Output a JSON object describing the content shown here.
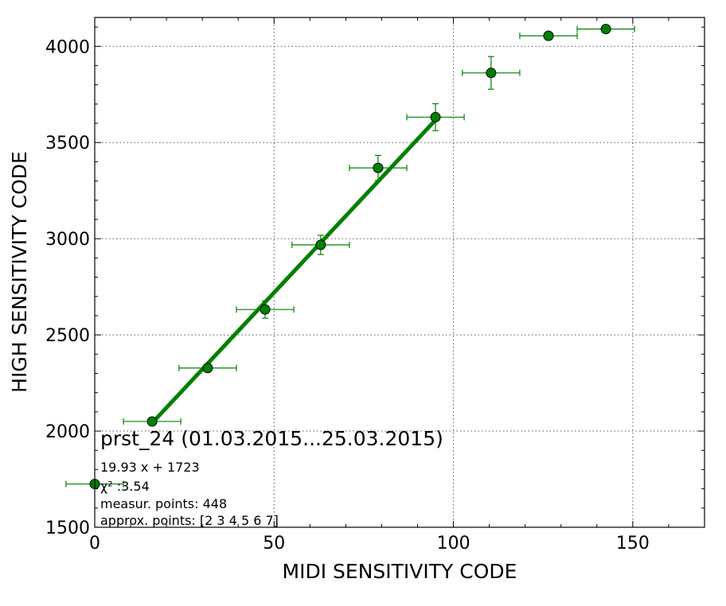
{
  "chart_data": {
    "type": "scatter",
    "title": "",
    "xlabel": "MIDI SENSITIVITY CODE",
    "ylabel": "HIGH SENSITIVITY CODE",
    "xlim": [
      0,
      170
    ],
    "ylim": [
      1500,
      4150
    ],
    "xticks": [
      0,
      50,
      100,
      150
    ],
    "yticks": [
      1500,
      2000,
      2500,
      3000,
      3500,
      4000
    ],
    "grid": true,
    "colors": {
      "points": "#008000",
      "fit_line": "#008000",
      "errorbars": "#008000"
    },
    "series": [
      {
        "kind": "points-with-errorbars",
        "points": [
          {
            "x": 0,
            "y": 1725,
            "xerr": 8,
            "yerr": 0
          },
          {
            "x": 16,
            "y": 2050,
            "xerr": 8,
            "yerr": 0
          },
          {
            "x": 31.5,
            "y": 2328,
            "xerr": 8,
            "yerr": 15
          },
          {
            "x": 47.5,
            "y": 2632,
            "xerr": 8,
            "yerr": 45
          },
          {
            "x": 63,
            "y": 2968,
            "xerr": 8,
            "yerr": 50
          },
          {
            "x": 79,
            "y": 3368,
            "xerr": 8,
            "yerr": 65
          },
          {
            "x": 95,
            "y": 3632,
            "xerr": 8,
            "yerr": 70
          },
          {
            "x": 110.5,
            "y": 3862,
            "xerr": 8,
            "yerr": 85
          },
          {
            "x": 126.5,
            "y": 4055,
            "xerr": 8,
            "yerr": 10
          },
          {
            "x": 142.5,
            "y": 4090,
            "xerr": 8,
            "yerr": 5
          }
        ]
      },
      {
        "kind": "fit-line",
        "x": [
          16,
          95
        ],
        "y": [
          2042,
          3617
        ]
      }
    ],
    "annotation": {
      "title": "prst_24 (01.03.2015...25.03.2015)",
      "lines": [
        "19.93 x + 1723",
        "χ² :3.54",
        "measur. points: 448",
        "approx. points: [2 3 4 5 6 7]"
      ]
    }
  }
}
